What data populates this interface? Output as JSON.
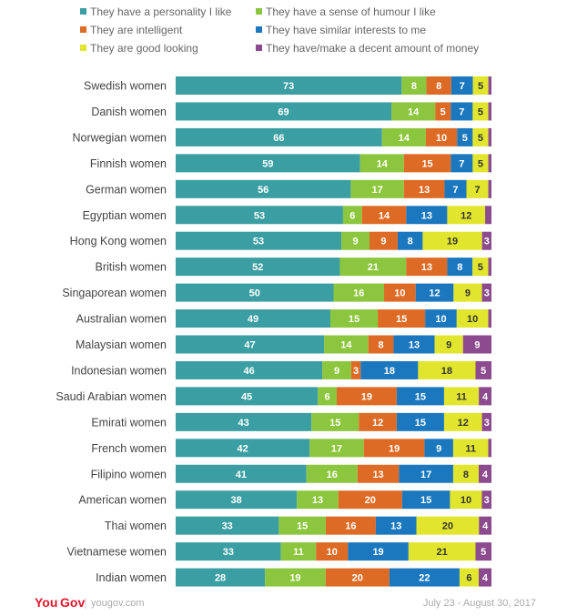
{
  "chart_data": {
    "type": "bar",
    "orientation": "horizontal",
    "stacked": true,
    "title": "",
    "legend_position": "top",
    "categories": [
      "Swedish women",
      "Danish women",
      "Norwegian women",
      "Finnish women",
      "German women",
      "Egyptian women",
      "Hong Kong women",
      "British women",
      "Singaporean women",
      "Australian women",
      "Malaysian women",
      "Indonesian women",
      "Saudi Arabian women",
      "Emirati women",
      "French women",
      "Filipino women",
      "American women",
      "Thai women",
      "Vietnamese women",
      "Indian women"
    ],
    "series": [
      {
        "name": "They have a personality I like",
        "color": "#3a9ea3",
        "values": [
          73,
          69,
          66,
          59,
          56,
          53,
          53,
          52,
          50,
          49,
          47,
          46,
          45,
          43,
          42,
          41,
          38,
          33,
          33,
          28
        ]
      },
      {
        "name": "They have a sense of humour I like",
        "color": "#8cc63e",
        "values": [
          8,
          14,
          14,
          14,
          17,
          6,
          9,
          21,
          16,
          15,
          14,
          9,
          6,
          15,
          17,
          16,
          13,
          15,
          11,
          19
        ]
      },
      {
        "name": "They are intelligent",
        "color": "#de6b25",
        "values": [
          8,
          5,
          10,
          15,
          13,
          14,
          9,
          13,
          10,
          15,
          8,
          3,
          19,
          12,
          19,
          13,
          20,
          16,
          10,
          20
        ]
      },
      {
        "name": "They have similar interests to me",
        "color": "#1b78be",
        "values": [
          7,
          7,
          5,
          7,
          7,
          13,
          8,
          8,
          12,
          10,
          13,
          18,
          15,
          15,
          9,
          17,
          15,
          13,
          19,
          22
        ]
      },
      {
        "name": "They are good looking",
        "color": "#e2e52d",
        "values": [
          5,
          5,
          5,
          5,
          7,
          12,
          19,
          5,
          9,
          10,
          9,
          18,
          11,
          12,
          11,
          8,
          10,
          20,
          21,
          6
        ]
      },
      {
        "name": "They have/make a decent amount of money",
        "color": "#8c4a8f",
        "values": [
          1,
          1,
          1,
          1,
          1,
          2,
          3,
          1,
          3,
          1,
          9,
          5,
          4,
          3,
          1,
          4,
          3,
          4,
          5,
          4
        ]
      }
    ],
    "shown_labels": [
      [
        73,
        8,
        8,
        7,
        5,
        null
      ],
      [
        69,
        14,
        5,
        7,
        5,
        null
      ],
      [
        66,
        14,
        10,
        5,
        5,
        null
      ],
      [
        59,
        14,
        15,
        7,
        5,
        null
      ],
      [
        56,
        17,
        13,
        7,
        7,
        null
      ],
      [
        53,
        6,
        14,
        13,
        12,
        null
      ],
      [
        53,
        9,
        9,
        8,
        19,
        3
      ],
      [
        52,
        21,
        13,
        8,
        5,
        null
      ],
      [
        50,
        16,
        10,
        12,
        9,
        3
      ],
      [
        49,
        15,
        15,
        10,
        10,
        null
      ],
      [
        47,
        14,
        8,
        13,
        9,
        9
      ],
      [
        46,
        9,
        3,
        18,
        18,
        5
      ],
      [
        45,
        6,
        19,
        15,
        11,
        4
      ],
      [
        43,
        15,
        12,
        15,
        12,
        3
      ],
      [
        42,
        17,
        19,
        9,
        11,
        null
      ],
      [
        41,
        16,
        13,
        17,
        8,
        4
      ],
      [
        38,
        13,
        20,
        15,
        10,
        3
      ],
      [
        33,
        15,
        16,
        13,
        20,
        4
      ],
      [
        33,
        11,
        10,
        19,
        21,
        5
      ],
      [
        28,
        19,
        20,
        22,
        6,
        4
      ]
    ],
    "xlim": [
      0,
      100
    ]
  },
  "footer": {
    "brand_you": "You",
    "brand_gov": "Gov",
    "site": "yougov.com",
    "date_range": "July 23 - August 30, 2017"
  }
}
